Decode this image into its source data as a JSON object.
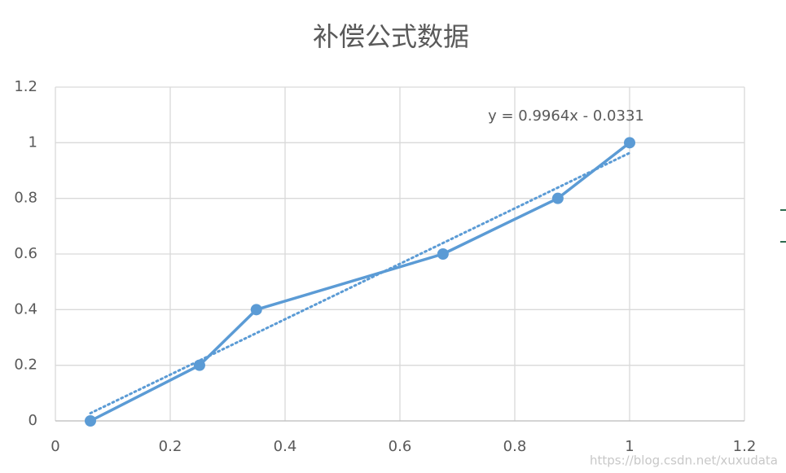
{
  "chart_data": {
    "type": "scatter-line",
    "title": "补偿公式数据",
    "series": [
      {
        "color": "#5b9bd5",
        "x": [
          0.061,
          0.251,
          0.35,
          0.675,
          0.875,
          1.0
        ],
        "values": [
          0,
          0.2,
          0.4,
          0.6,
          0.8,
          1.0
        ]
      }
    ],
    "trendline": {
      "slope": 0.9964,
      "intercept": -0.0331,
      "label": "y = 0.9964x - 0.0331"
    },
    "xlim": [
      0,
      1.2
    ],
    "xticks": [
      0,
      0.2,
      0.4,
      0.6,
      0.8,
      1,
      1.2
    ],
    "ylim": [
      0,
      1.2
    ],
    "yticks": [
      0,
      0.2,
      0.4,
      0.6,
      0.8,
      1,
      1.2
    ],
    "grid": true,
    "watermark": "https://blog.csdn.net/xuxudata"
  }
}
